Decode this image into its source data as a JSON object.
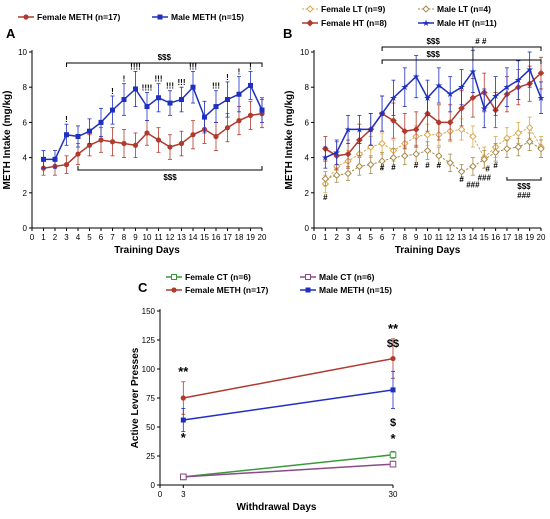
{
  "colors": {
    "female_meth": "#b03a2e",
    "male_meth": "#1f2fbf",
    "female_lt": "#d9a94e",
    "male_lt": "#a88a4a",
    "female_ct": "#3a9a3a",
    "male_ct": "#8a4a8a"
  },
  "chart_data": [
    {
      "panel": "A",
      "type": "line",
      "xlabel": "Training Days",
      "ylabel": "METH Intake (mg/kg)",
      "xlim": [
        0,
        20
      ],
      "ylim": [
        0,
        10
      ],
      "x_ticks": [
        0,
        1,
        2,
        3,
        4,
        5,
        6,
        7,
        8,
        9,
        10,
        11,
        12,
        13,
        14,
        15,
        16,
        17,
        18,
        19,
        20
      ],
      "y_ticks": [
        0,
        2,
        4,
        6,
        8,
        10
      ],
      "x": [
        1,
        2,
        3,
        4,
        5,
        6,
        7,
        8,
        9,
        10,
        11,
        12,
        13,
        14,
        15,
        16,
        17,
        18,
        19,
        20
      ],
      "series": [
        {
          "name": "Female METH (n=17)",
          "color_key": "female_meth",
          "marker": "circle",
          "values": [
            3.4,
            3.5,
            3.6,
            4.2,
            4.7,
            5.0,
            4.9,
            4.8,
            4.7,
            5.4,
            5.0,
            4.6,
            4.8,
            5.3,
            5.6,
            5.2,
            5.7,
            6.1,
            6.4,
            6.5
          ],
          "errors": [
            0.4,
            0.5,
            0.5,
            0.6,
            0.6,
            0.7,
            0.8,
            0.8,
            0.7,
            0.7,
            0.7,
            0.7,
            0.7,
            0.8,
            0.8,
            0.8,
            0.8,
            0.8,
            0.8,
            0.8
          ]
        },
        {
          "name": "Male METH (n=15)",
          "color_key": "male_meth",
          "marker": "square",
          "values": [
            3.9,
            3.9,
            5.3,
            5.2,
            5.5,
            6.0,
            6.7,
            7.3,
            7.9,
            6.9,
            7.4,
            7.1,
            7.3,
            8.0,
            6.3,
            6.9,
            7.3,
            7.6,
            8.1,
            6.7
          ],
          "errors": [
            0.5,
            0.5,
            0.6,
            0.6,
            0.7,
            0.8,
            0.8,
            0.9,
            1.0,
            0.8,
            0.8,
            0.7,
            0.7,
            0.9,
            0.9,
            0.9,
            1.0,
            1.0,
            0.8,
            0.7
          ]
        }
      ],
      "annotations": {
        "top_bracket": "$$$",
        "bottom_bracket": "$$$",
        "marks": [
          "!",
          "!",
          "!",
          "!!!!",
          "!!!!",
          "!!!",
          "!!!",
          "!!!",
          "!!!",
          "!!!",
          "!",
          "!",
          "!"
        ]
      }
    },
    {
      "panel": "B",
      "type": "line",
      "xlabel": "Training Days",
      "ylabel": "METH Intake (mg/kg)",
      "xlim": [
        0,
        20
      ],
      "ylim": [
        0,
        10
      ],
      "x_ticks": [
        0,
        1,
        2,
        3,
        4,
        5,
        6,
        7,
        8,
        9,
        10,
        11,
        12,
        13,
        14,
        15,
        16,
        17,
        18,
        19,
        20
      ],
      "y_ticks": [
        0,
        2,
        4,
        6,
        8,
        10
      ],
      "x": [
        1,
        2,
        3,
        4,
        5,
        6,
        7,
        8,
        9,
        10,
        11,
        12,
        13,
        14,
        15,
        16,
        17,
        18,
        19,
        20
      ],
      "series": [
        {
          "name": "Female LT (n=9)",
          "color_key": "female_lt",
          "marker": "diamond-open",
          "dashed": true,
          "values": [
            2.5,
            3.5,
            3.8,
            4.2,
            4.6,
            4.8,
            4.4,
            4.8,
            5.2,
            5.3,
            5.3,
            5.5,
            5.6,
            5.2,
            4.0,
            4.6,
            5.1,
            5.4,
            5.7,
            4.6
          ],
          "errors": [
            0.5,
            0.6,
            0.6,
            0.6,
            0.6,
            0.6,
            0.6,
            0.6,
            0.6,
            0.6,
            0.6,
            0.6,
            0.6,
            0.6,
            0.6,
            0.6,
            0.6,
            0.6,
            0.6,
            0.6
          ]
        },
        {
          "name": "Male LT (n=4)",
          "color_key": "male_lt",
          "marker": "diamond-open",
          "dashed": true,
          "values": [
            2.8,
            3.0,
            3.1,
            3.5,
            3.6,
            3.8,
            4.0,
            4.1,
            4.2,
            4.4,
            4.1,
            3.7,
            3.2,
            3.5,
            3.9,
            4.3,
            4.5,
            4.6,
            4.9,
            4.5
          ],
          "errors": [
            0.4,
            0.4,
            0.4,
            0.5,
            0.5,
            0.5,
            0.5,
            0.5,
            0.5,
            0.5,
            0.5,
            0.5,
            0.4,
            0.5,
            0.5,
            0.5,
            0.5,
            0.5,
            0.5,
            0.5
          ]
        },
        {
          "name": "Female HT (n=8)",
          "color_key": "female_meth",
          "marker": "diamond",
          "values": [
            4.5,
            4.1,
            4.2,
            5.0,
            5.6,
            6.5,
            6.1,
            5.5,
            5.6,
            6.5,
            6.0,
            6.0,
            6.8,
            7.4,
            7.7,
            6.7,
            7.6,
            8.0,
            8.2,
            8.8
          ],
          "errors": [
            0.7,
            0.8,
            0.8,
            0.9,
            0.9,
            1.0,
            1.0,
            1.0,
            1.0,
            1.0,
            1.0,
            1.0,
            1.0,
            1.1,
            1.1,
            1.0,
            1.0,
            1.0,
            1.0,
            0.9
          ]
        },
        {
          "name": "Male HT (n=11)",
          "color_key": "male_meth",
          "marker": "star",
          "values": [
            4.0,
            4.3,
            5.6,
            5.6,
            5.6,
            6.5,
            7.4,
            8.0,
            8.6,
            7.4,
            8.1,
            7.6,
            8.0,
            8.9,
            6.8,
            7.5,
            8.0,
            8.4,
            9.0,
            7.4
          ],
          "errors": [
            0.6,
            0.7,
            0.8,
            0.8,
            0.9,
            1.0,
            1.0,
            1.1,
            1.2,
            1.0,
            1.0,
            1.0,
            1.0,
            1.2,
            1.1,
            1.1,
            1.1,
            1.1,
            1.0,
            0.9
          ]
        }
      ],
      "annotations": {
        "top_brackets": [
          "$$$",
          "# #",
          "$$$"
        ],
        "right_bracket": "$$$",
        "right_bracket_2": "###",
        "marks": [
          "#",
          "#",
          "#",
          "#",
          "#",
          "#",
          "#",
          "#",
          "###",
          "###",
          "#"
        ]
      }
    },
    {
      "panel": "C",
      "type": "line",
      "xlabel": "Withdrawal Days",
      "ylabel": "Active Lever Presses",
      "xlim": [
        0,
        30
      ],
      "ylim": [
        0,
        150
      ],
      "x_ticks": [
        0,
        3,
        30
      ],
      "y_ticks": [
        0,
        25,
        50,
        75,
        100,
        125,
        150
      ],
      "x": [
        3,
        30
      ],
      "series": [
        {
          "name": "Female CT (n=6)",
          "color_key": "female_ct",
          "marker": "square-open",
          "values": [
            7,
            26
          ],
          "errors": [
            1.5,
            3
          ]
        },
        {
          "name": "Male CT (n=6)",
          "color_key": "male_ct",
          "marker": "square-open",
          "values": [
            7,
            18
          ],
          "errors": [
            1.5,
            2.5
          ]
        },
        {
          "name": "Female METH (n=17)",
          "color_key": "female_meth",
          "marker": "circle",
          "values": [
            75,
            109
          ],
          "errors": [
            14,
            17
          ]
        },
        {
          "name": "Male METH (n=15)",
          "color_key": "male_meth",
          "marker": "square",
          "values": [
            56,
            82
          ],
          "errors": [
            10,
            16
          ]
        }
      ],
      "annotations": {
        "day3_above": "**",
        "day3_below": "*",
        "day30_above_1": "**",
        "day30_above_2": "$$",
        "day30_below_1": "$",
        "day30_below_2": "*"
      }
    }
  ],
  "legends": {
    "A": [
      "Female METH (n=17)",
      "Male METH (n=15)"
    ],
    "B": [
      "Female LT (n=9)",
      "Male LT (n=4)",
      "Female HT (n=8)",
      "Male HT (n=11)"
    ],
    "C": [
      "Female CT (n=6)",
      "Male CT (n=6)",
      "Female METH (n=17)",
      "Male METH (n=15)"
    ]
  },
  "panel_letters": [
    "A",
    "B",
    "C"
  ]
}
